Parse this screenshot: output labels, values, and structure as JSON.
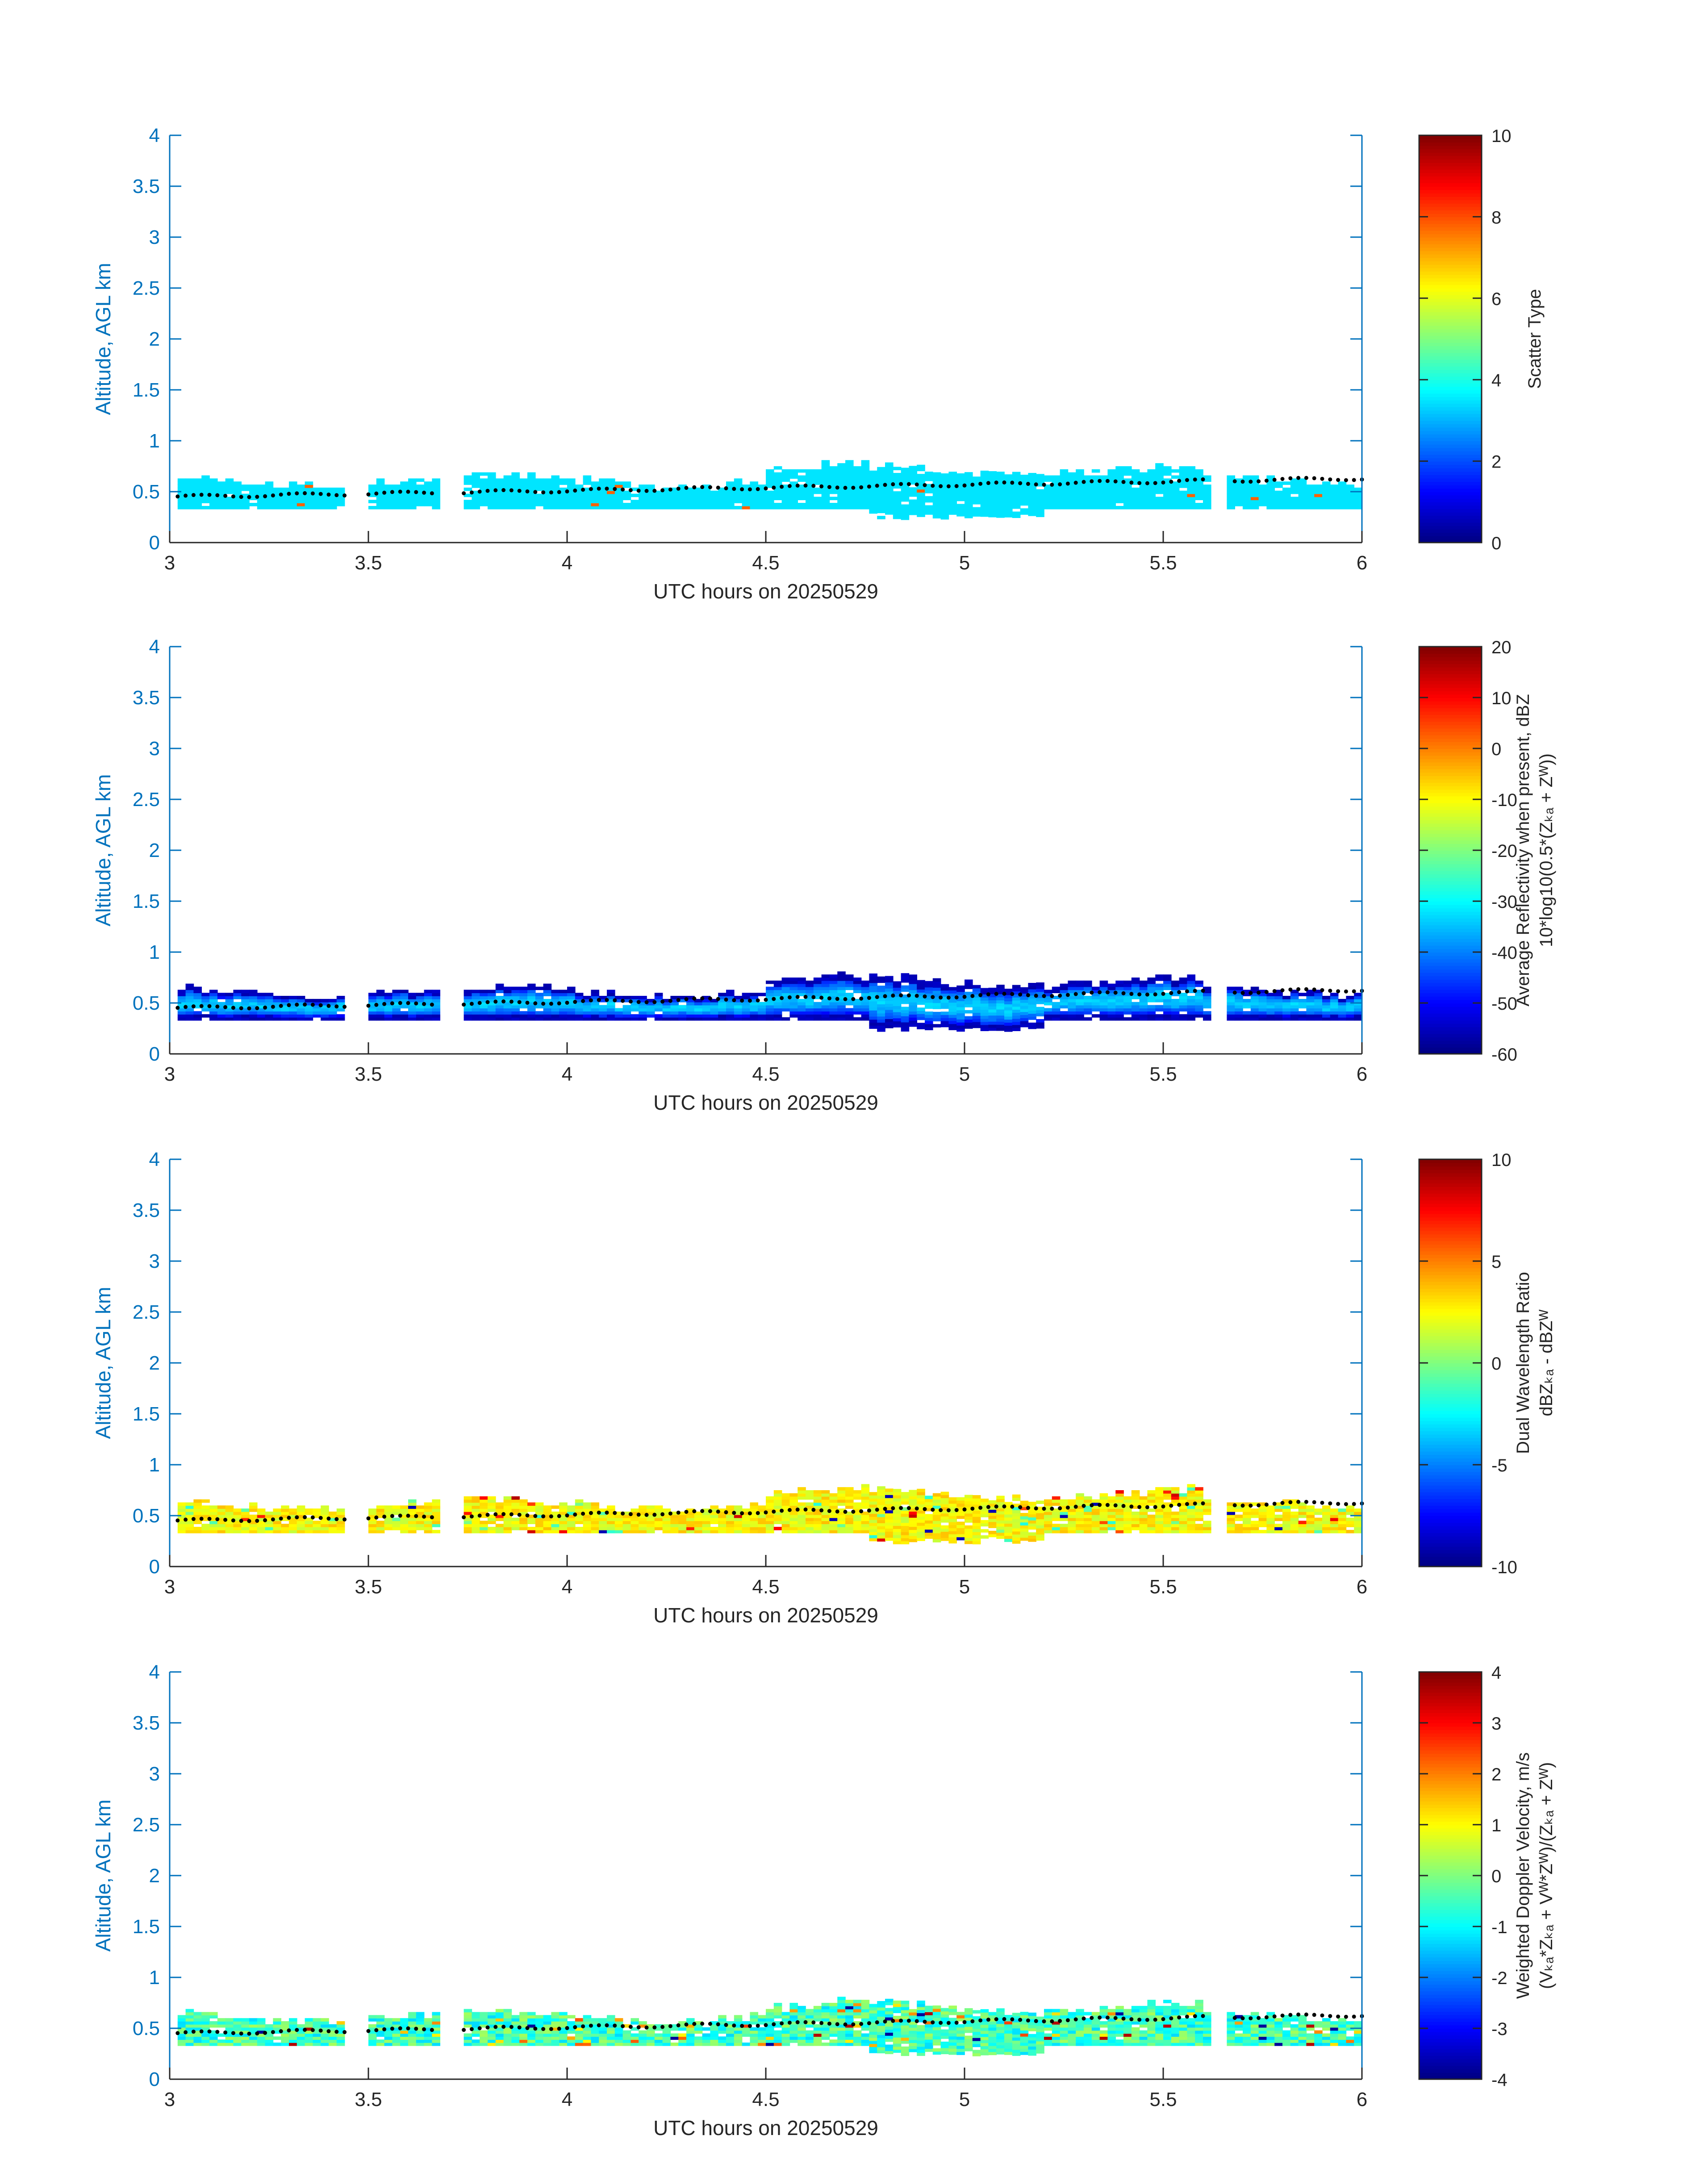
{
  "chart_data": [
    {
      "type": "heatmap",
      "title": "",
      "xlabel": "UTC hours on 20250529",
      "ylabel": "Altitude, AGL km",
      "xlim": [
        3,
        6
      ],
      "ylim": [
        0,
        4
      ],
      "x_ticks": [
        "3",
        "3.5",
        "4",
        "4.5",
        "5",
        "5.5",
        "6"
      ],
      "y_ticks": [
        "0",
        "0.5",
        "1",
        "1.5",
        "2",
        "2.5",
        "3",
        "3.5",
        "4"
      ],
      "colorbar": {
        "label_lines": [
          "Scatter Type"
        ],
        "range": [
          0,
          10
        ],
        "ticks": [
          "0",
          "2",
          "4",
          "6",
          "8",
          "10"
        ]
      },
      "field": "scatter_type",
      "dominant_value": 3.5,
      "cloud_layer_km": {
        "bottom_approx": 0.3,
        "top_approx": 0.75
      },
      "colormap": "jet",
      "dotted_line": "cloud base height trace, rising from about 0.45 km at 3 UTC to about 0.63 km at 6 UTC"
    },
    {
      "type": "heatmap",
      "title": "",
      "xlabel": "UTC hours on 20250529",
      "ylabel": "Altitude, AGL km",
      "xlim": [
        3,
        6
      ],
      "ylim": [
        0,
        4
      ],
      "x_ticks": [
        "3",
        "3.5",
        "4",
        "4.5",
        "5",
        "5.5",
        "6"
      ],
      "y_ticks": [
        "0",
        "0.5",
        "1",
        "1.5",
        "2",
        "2.5",
        "3",
        "3.5",
        "4"
      ],
      "colorbar": {
        "label_lines": [
          "Average Reflectivity when present, dBZ",
          "10*log10(0.5*(Zₖₐ + Zᵂ))"
        ],
        "range": [
          -60,
          20
        ],
        "ticks": [
          "-60",
          "-50",
          "-40",
          "-30",
          "-20",
          "-10",
          "0",
          "10",
          "20"
        ]
      },
      "field": "average_reflectivity",
      "value_range_dBZ": [
        -58,
        -32
      ],
      "colormap": "jet"
    },
    {
      "type": "heatmap",
      "title": "",
      "xlabel": "UTC hours on 20250529",
      "ylabel": "Altitude, AGL km",
      "xlim": [
        3,
        6
      ],
      "ylim": [
        0,
        4
      ],
      "x_ticks": [
        "3",
        "3.5",
        "4",
        "4.5",
        "5",
        "5.5",
        "6"
      ],
      "y_ticks": [
        "0",
        "0.5",
        "1",
        "1.5",
        "2",
        "2.5",
        "3",
        "3.5",
        "4"
      ],
      "colorbar": {
        "label_lines": [
          "Dual Wavelength Ratio",
          "dBZₖₐ - dBZᵂ"
        ],
        "range": [
          -10,
          10
        ],
        "ticks": [
          "-10",
          "-5",
          "0",
          "5",
          "10"
        ]
      },
      "field": "dual_wavelength_ratio",
      "dominant_value_dB": 2.5,
      "colormap": "jet"
    },
    {
      "type": "heatmap",
      "title": "",
      "xlabel": "UTC hours on 20250529",
      "ylabel": "Altitude, AGL km",
      "xlim": [
        3,
        6
      ],
      "ylim": [
        0,
        4
      ],
      "x_ticks": [
        "3",
        "3.5",
        "4",
        "4.5",
        "5",
        "5.5",
        "6"
      ],
      "y_ticks": [
        "0",
        "0.5",
        "1",
        "1.5",
        "2",
        "2.5",
        "3",
        "3.5",
        "4"
      ],
      "colorbar": {
        "label_lines": [
          "Weighted Doppler Velocity, m/s",
          "(Vₖₐ*Zₖₐ + Vᵂ*Zᵂ)/(Zₖₐ + Zᵂ)"
        ],
        "range": [
          -4,
          4
        ],
        "ticks": [
          "-4",
          "-3",
          "-2",
          "-1",
          "0",
          "1",
          "2",
          "3",
          "4"
        ]
      },
      "field": "weighted_doppler_velocity",
      "dominant_value_ms": -0.5,
      "colormap": "jet"
    }
  ]
}
